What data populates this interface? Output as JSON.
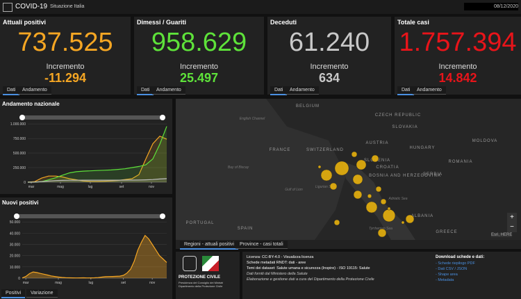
{
  "header": {
    "title": "COVID-19",
    "subtitle": "Situazione Italia",
    "date": "08/12/2020"
  },
  "cards": [
    {
      "title": "Attuali positivi",
      "value": "737.525",
      "increment_label": "Incremento",
      "increment": "-11.294",
      "color": "#f5a623",
      "tabs": [
        "Dati",
        "Andamento"
      ]
    },
    {
      "title": "Dimessi / Guariti",
      "value": "958.629",
      "increment_label": "Incremento",
      "increment": "25.497",
      "color": "#5ee23a",
      "tabs": [
        "Dati",
        "Andamento"
      ]
    },
    {
      "title": "Deceduti",
      "value": "61.240",
      "increment_label": "Incremento",
      "increment": "634",
      "color": "#c8c8c8",
      "tabs": [
        "Dati",
        "Andamento"
      ]
    },
    {
      "title": "Totale casi",
      "value": "1.757.394",
      "increment_label": "Incremento",
      "increment": "14.842",
      "color": "#e8141a",
      "tabs": [
        "Dati",
        "Andamento"
      ]
    }
  ],
  "charts": [
    {
      "type": "line",
      "title": "Andamento nazionale",
      "xlim": [
        0,
        20
      ],
      "xticks": [
        {
          "value": 0.5,
          "label": "mar"
        },
        {
          "value": 4.7,
          "label": "mag"
        },
        {
          "value": 9,
          "label": "lug"
        },
        {
          "value": 13.5,
          "label": "set"
        },
        {
          "value": 17.8,
          "label": "nov"
        }
      ],
      "ylim": [
        0,
        1050000
      ],
      "yticks": [
        0,
        {
          "value": 250000,
          "label": "250.000"
        },
        {
          "value": 500000,
          "label": "500.000"
        },
        {
          "value": 750000,
          "label": "750.000"
        },
        {
          "value": 1000000,
          "label": "1.000.000"
        }
      ],
      "series": [
        {
          "color": "#f5a623",
          "values": [
            200,
            10000,
            70000,
            105000,
            105000,
            90000,
            60000,
            40000,
            20000,
            13000,
            12000,
            15000,
            21000,
            30000,
            45000,
            60000,
            130000,
            400000,
            660000,
            790000,
            737525
          ]
        },
        {
          "color": "#5ee23a",
          "values": [
            0,
            1000,
            10000,
            40000,
            75000,
            120000,
            160000,
            180000,
            190000,
            195000,
            200000,
            205000,
            210000,
            220000,
            230000,
            250000,
            270000,
            300000,
            400000,
            650000,
            958629
          ]
        },
        {
          "color": "#bdbdbd",
          "values": [
            0,
            1000,
            10000,
            20000,
            27000,
            31000,
            33000,
            34000,
            35000,
            35000,
            35000,
            35000,
            35000,
            35000,
            36000,
            36000,
            37000,
            40000,
            45000,
            55000,
            61240
          ]
        }
      ]
    },
    {
      "type": "area",
      "title": "Nuovi positivi",
      "xlim": [
        0,
        40
      ],
      "xticks": [
        {
          "value": 1,
          "label": "mar"
        },
        {
          "value": 10,
          "label": "mag"
        },
        {
          "value": 19,
          "label": "lug"
        },
        {
          "value": 28,
          "label": "set"
        },
        {
          "value": 36,
          "label": "nov"
        }
      ],
      "ylim": [
        0,
        52000
      ],
      "yticks": [
        0,
        {
          "value": 10000,
          "label": "10.000"
        },
        {
          "value": 20000,
          "label": "20.000"
        },
        {
          "value": 30000,
          "label": "30.000"
        },
        {
          "value": 40000,
          "label": "40.000"
        },
        {
          "value": 50000,
          "label": "50.000"
        }
      ],
      "series": [
        {
          "color": "#f5a623",
          "values": [
            200,
            1500,
            4000,
            5500,
            5000,
            4200,
            3500,
            2800,
            2000,
            1500,
            1000,
            600,
            400,
            300,
            250,
            200,
            250,
            300,
            200,
            250,
            300,
            500,
            900,
            1300,
            1400,
            1500,
            1600,
            1800,
            2500,
            4500,
            8000,
            15000,
            25000,
            32000,
            38000,
            35000,
            30000,
            25000,
            20000,
            17000,
            14000
          ]
        }
      ],
      "tabs": [
        "Positivi",
        "Variazione"
      ]
    }
  ],
  "map": {
    "labels": [
      "BELGIUM",
      "English Channel",
      "CZECH REPUBLIC",
      "SLOVAKIA",
      "FRANCE",
      "SWITZERLAND",
      "AUSTRIA",
      "HUNGARY",
      "MOLDOVA",
      "SLOVENIA",
      "CROATIA",
      "ROMANIA",
      "Bay of Biscay",
      "BOSNIA AND HERZEGOVINA",
      "SERBIA",
      "Gulf of Lion",
      "Ligurian Sea",
      "Adriatic Sea",
      "PORTUGAL",
      "SPAIN",
      "Tyrrhenian Sea",
      "ALBANIA",
      "GREECE"
    ],
    "bubbles": [
      140000,
      90000,
      70000,
      70000,
      50000,
      90000,
      110000,
      50000,
      50000,
      22000,
      35000,
      35000,
      22000,
      22000,
      12000,
      22000,
      6000,
      6000,
      6000
    ],
    "tabs": [
      "Regioni - attuali positivi",
      "Province - casi totali"
    ],
    "attribution": "Esri, HERE"
  },
  "info": {
    "logo_title": "PROTEZIONE CIVILE",
    "logo_sub1": "Presidenza del Consiglio dei Ministri",
    "logo_sub2": "Dipartimento della Protezione Civile",
    "lines": [
      "Licenza: CC-BY-4.0 - Visualizza licenza",
      "Schede metadati RNDT: dati - aree",
      "Temi dei dataset: Salute umana e sicurezza (Inspire) - ISO 19115: Salute",
      "Dati forniti dal Ministero della Salute",
      "Elaborazione e gestione dati a cura del Dipartimento della Protezione Civile"
    ],
    "download_title": "Download schede e dati:",
    "downloads": [
      "- Schede riepilogo PDF",
      "- Dati CSV / JSON",
      "- Shape area",
      "- Metadata"
    ]
  }
}
